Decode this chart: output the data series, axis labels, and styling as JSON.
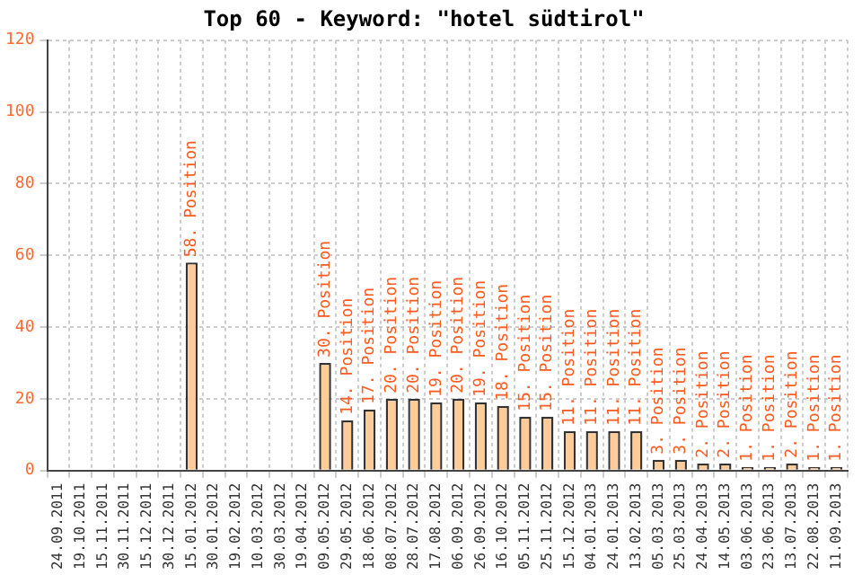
{
  "chart_data": {
    "type": "bar",
    "title": "Top 60 - Keyword: \"hotel südtirol\"",
    "categories": [
      "24.09.2011",
      "19.10.2011",
      "15.11.2011",
      "30.11.2011",
      "15.12.2011",
      "30.12.2011",
      "15.01.2012",
      "30.01.2012",
      "19.02.2012",
      "10.03.2012",
      "30.03.2012",
      "19.04.2012",
      "09.05.2012",
      "29.05.2012",
      "18.06.2012",
      "08.07.2012",
      "28.07.2012",
      "17.08.2012",
      "06.09.2012",
      "26.09.2012",
      "16.10.2012",
      "05.11.2012",
      "25.11.2012",
      "15.12.2012",
      "04.01.2013",
      "24.01.2013",
      "13.02.2013",
      "05.03.2013",
      "25.03.2013",
      "24.04.2013",
      "14.05.2013",
      "03.06.2013",
      "23.06.2013",
      "13.07.2013",
      "22.08.2013",
      "11.09.2013"
    ],
    "values": [
      null,
      null,
      null,
      null,
      null,
      null,
      58,
      null,
      null,
      null,
      null,
      null,
      30,
      14,
      17,
      20,
      20,
      19,
      20,
      19,
      18,
      15,
      15,
      11,
      11,
      11,
      11,
      3,
      3,
      2,
      2,
      1,
      1,
      2,
      1,
      1
    ],
    "value_labels": [
      null,
      null,
      null,
      null,
      null,
      null,
      "58. Position",
      null,
      null,
      null,
      null,
      null,
      "30. Position",
      "14. Position",
      "17. Position",
      "20. Position",
      "20. Position",
      "19. Position",
      "20. Position",
      "19. Position",
      "18. Position",
      "15. Position",
      "15. Position",
      "11. Position",
      "11. Position",
      "11. Position",
      "11. Position",
      "3. Position",
      "3. Position",
      "2. Position",
      "2. Position",
      "1. Position",
      "1. Position",
      "2. Position",
      "1. Position",
      "1. Position"
    ],
    "color": "#ffcc99",
    "ylim": [
      0,
      120
    ],
    "yticks": [
      0,
      20,
      40,
      60,
      80,
      100,
      120
    ],
    "grid": true,
    "legend": false
  }
}
